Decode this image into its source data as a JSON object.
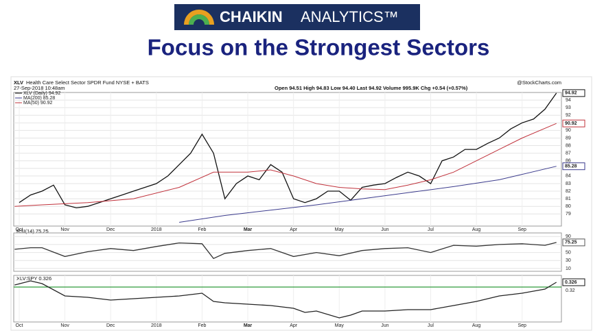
{
  "header": {
    "brand_bold": "CHAIKIN",
    "brand_light": "ANALYTICS™",
    "title": "Focus on the Strongest Sectors"
  },
  "chart_data": [
    {
      "type": "line",
      "symbol": "XLV",
      "name": "Health Care Select Sector SPDR Fund NYSE + BATS",
      "date": "27-Sep-2018 10:48am",
      "quote": "Open 94.51  High 94.83  Low 94.40  Last 94.92  Volume 995.9K  Chg +0.54 (+0.57%)",
      "source": "@StockCharts.com",
      "xlim": [
        -0.24,
        23.72
      ],
      "xticks": [
        {
          "value": 0,
          "label": "Oct"
        },
        {
          "value": 2,
          "label": "Nov"
        },
        {
          "value": 4,
          "label": "Dec"
        },
        {
          "value": 6,
          "label": "2018"
        },
        {
          "value": 8,
          "label": "Feb"
        },
        {
          "value": 10,
          "label": "Mar"
        },
        {
          "value": 12,
          "label": "Apr"
        },
        {
          "value": 14,
          "label": "May"
        },
        {
          "value": 16,
          "label": "Jun"
        },
        {
          "value": 18,
          "label": "Jul"
        },
        {
          "value": 20,
          "label": "Aug"
        },
        {
          "value": 22,
          "label": "Sep"
        }
      ],
      "ylim": [
        77.4,
        95
      ],
      "yticks": [
        79,
        80,
        81,
        82,
        83,
        84,
        85,
        86,
        87,
        88,
        89,
        90,
        91,
        92,
        93,
        94
      ],
      "grid": true,
      "series": [
        {
          "name": "XLV (Daily) 94.92",
          "color": "#111111",
          "tag_color": "#111111",
          "x": [
            0,
            0.5,
            1,
            1.5,
            2,
            2.5,
            3,
            3.5,
            4,
            4.5,
            5,
            5.5,
            6,
            6.5,
            7,
            7.5,
            8,
            8.5,
            9,
            9.5,
            10,
            10.5,
            11,
            11.5,
            12,
            12.5,
            13,
            13.5,
            14,
            14.5,
            15,
            15.5,
            16,
            16.5,
            17,
            17.5,
            18,
            18.5,
            19,
            19.5,
            20,
            20.5,
            21,
            21.5,
            22,
            22.5,
            23,
            23.5
          ],
          "values": [
            80.5,
            81.5,
            82,
            82.8,
            80.2,
            79.8,
            80,
            80.5,
            81,
            81.5,
            82,
            82.5,
            83,
            84,
            85.5,
            87,
            89.5,
            87,
            81,
            83,
            84,
            83.5,
            85.5,
            84.5,
            81,
            80.5,
            81,
            82,
            82,
            80.8,
            82.5,
            82.8,
            83,
            83.8,
            84.5,
            84,
            83,
            86,
            86.5,
            87.5,
            87.5,
            88.3,
            89,
            90.2,
            91,
            91.5,
            92.8,
            94.92
          ]
        },
        {
          "name": "MA(200) 85.28",
          "color": "#3a3a8c",
          "tag_color": "#3a3a8c",
          "x": [
            7,
            9,
            11,
            13,
            15,
            17,
            19,
            21,
            23.5
          ],
          "values": [
            77.9,
            78.8,
            79.5,
            80.2,
            81,
            81.8,
            82.6,
            83.5,
            85.28
          ]
        },
        {
          "name": "MA(50) 90.92",
          "color": "#c0303a",
          "tag_color": "#c0303a",
          "x": [
            -0.2,
            1,
            3,
            5,
            7,
            8.5,
            10,
            11,
            12,
            13,
            14,
            15,
            16,
            17,
            18,
            19,
            20,
            21,
            22,
            23.5
          ],
          "values": [
            80,
            80.2,
            80.5,
            81,
            82.5,
            84.5,
            84.5,
            84.8,
            84,
            83,
            82.5,
            82.3,
            82.2,
            82.8,
            83.5,
            84.5,
            86,
            87.5,
            89,
            90.92
          ]
        }
      ]
    },
    {
      "type": "line",
      "label": "RSI(14) 75.25",
      "xlim": [
        -0.24,
        23.72
      ],
      "ylim": [
        3,
        99
      ],
      "yticks": [
        90,
        70,
        50,
        30,
        10
      ],
      "grid": true,
      "series": [
        {
          "name": "RSI(14)",
          "color": "#333333",
          "tag_color": "#555555",
          "x": [
            -0.2,
            0.5,
            1,
            2,
            3,
            4,
            5,
            6,
            7,
            8,
            8.5,
            9,
            10,
            11,
            12,
            13,
            14,
            15,
            16,
            17,
            18,
            19,
            20,
            21,
            22,
            23,
            23.5
          ],
          "values": [
            58,
            62,
            62,
            40,
            52,
            60,
            55,
            65,
            74,
            72,
            35,
            48,
            55,
            60,
            40,
            50,
            42,
            55,
            60,
            62,
            50,
            68,
            66,
            70,
            72,
            68,
            75.25
          ]
        }
      ]
    },
    {
      "type": "line",
      "label": "XLV:SPY 0.326",
      "xlim": [
        -0.24,
        23.72
      ],
      "ylim": [
        0.297,
        0.331
      ],
      "xticks": [
        {
          "value": 0,
          "label": "Oct"
        },
        {
          "value": 2,
          "label": "Nov"
        },
        {
          "value": 4,
          "label": "Dec"
        },
        {
          "value": 6,
          "label": "2018"
        },
        {
          "value": 8,
          "label": "Feb"
        },
        {
          "value": 10,
          "label": "Mar"
        },
        {
          "value": 12,
          "label": "Apr"
        },
        {
          "value": 14,
          "label": "May"
        },
        {
          "value": 16,
          "label": "Jun"
        },
        {
          "value": 18,
          "label": "Jul"
        },
        {
          "value": 20,
          "label": "Aug"
        },
        {
          "value": 22,
          "label": "Sep"
        }
      ],
      "yticks": [
        0.32
      ],
      "hline": 0.3225,
      "hline_color": "#2e9a3a",
      "series": [
        {
          "name": "XLV:SPY",
          "color": "#222222",
          "tag_color": "#111111",
          "x": [
            -0.2,
            0.5,
            1,
            2,
            3,
            4,
            5,
            6,
            7,
            8,
            8.5,
            9,
            10,
            11,
            12,
            12.5,
            13,
            14,
            14.5,
            15,
            16,
            17,
            18,
            19,
            20,
            21,
            22,
            23,
            23.5
          ],
          "values": [
            0.324,
            0.327,
            0.325,
            0.316,
            0.315,
            0.313,
            0.314,
            0.315,
            0.316,
            0.318,
            0.312,
            0.311,
            0.31,
            0.309,
            0.307,
            0.304,
            0.305,
            0.3,
            0.302,
            0.305,
            0.305,
            0.306,
            0.306,
            0.309,
            0.312,
            0.316,
            0.318,
            0.321,
            0.326
          ]
        }
      ]
    }
  ]
}
